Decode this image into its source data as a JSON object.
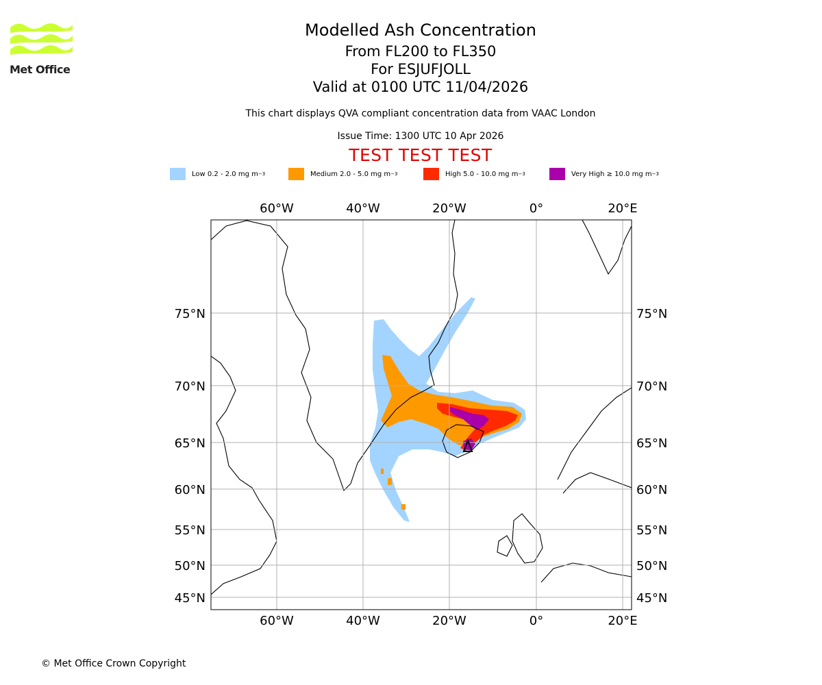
{
  "logo": {
    "text": "Met Office",
    "color": "#ccff33"
  },
  "header": {
    "title": "Modelled Ash Concentration",
    "levels": "From FL200 to FL350",
    "volcano": "For ESJUFJOLL",
    "valid": "Valid at 0100 UTC 11/04/2026",
    "compliance": "This chart displays QVA compliant concentration data from VAAC London",
    "issue_time": "Issue Time: 1300 UTC 10 Apr 2026",
    "test_banner": "TEST TEST TEST"
  },
  "legend": [
    {
      "label": "Low 0.2 - 2.0 mg m",
      "color": "#a3d4ff"
    },
    {
      "label": "Medium 2.0 - 5.0 mg m",
      "color": "#ff9900"
    },
    {
      "label": "High 5.0 - 10.0 mg m",
      "color": "#ff2a00"
    },
    {
      "label": "Very High ≥ 10.0 mg m",
      "color": "#aa00aa"
    }
  ],
  "legend_unit_exponent": "−3",
  "map": {
    "longitude_labels": [
      "60°W",
      "40°W",
      "20°W",
      "0°",
      "20°E"
    ],
    "latitude_labels": [
      "75°N",
      "70°N",
      "65°N",
      "60°N",
      "55°N",
      "50°N",
      "45°N"
    ],
    "extent": {
      "lon": [
        -75,
        22
      ],
      "lat": [
        44,
        80
      ]
    },
    "grid": true
  },
  "footer": {
    "copyright": "© Met Office Crown Copyright"
  }
}
